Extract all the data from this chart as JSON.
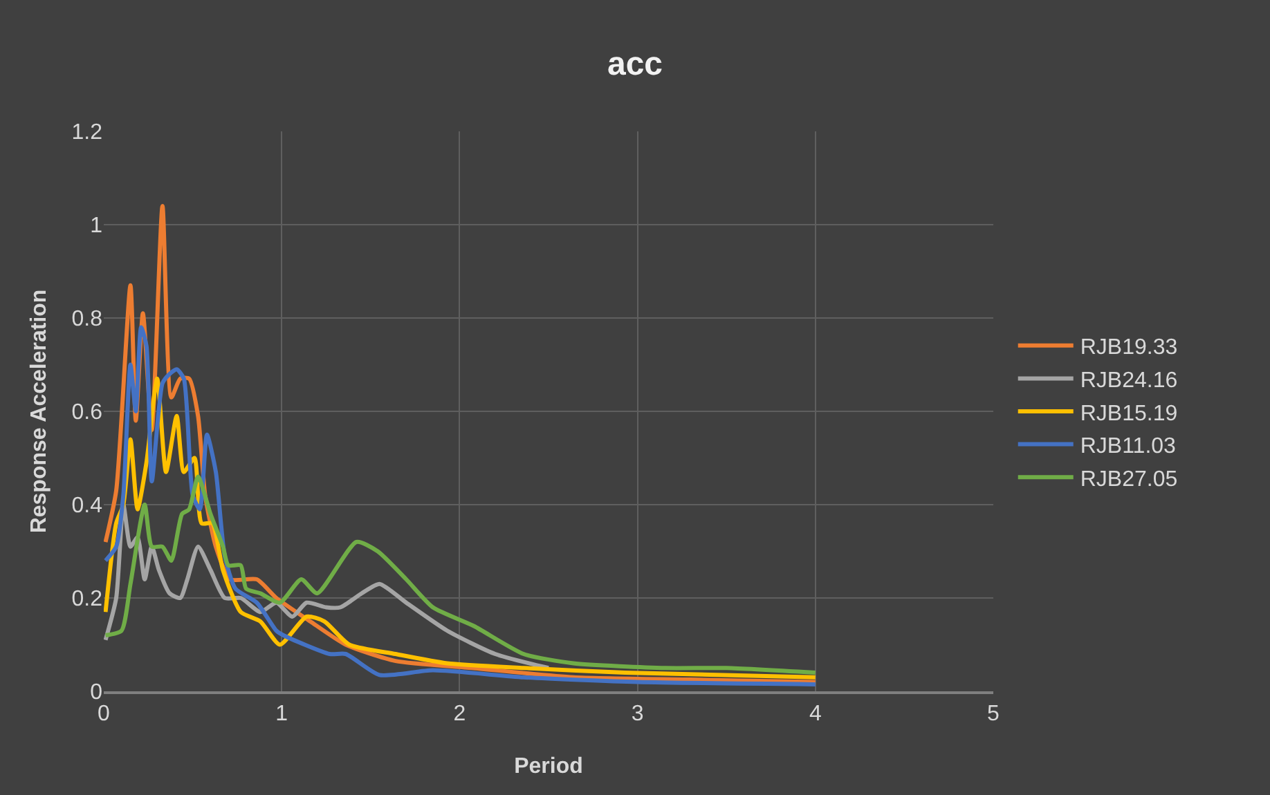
{
  "chart_data": {
    "type": "line",
    "title": "acc",
    "xlabel": "Period",
    "ylabel": "Response Acceleration",
    "xlim": [
      0,
      5
    ],
    "xticks": [
      0,
      1,
      2,
      3,
      4,
      5
    ],
    "ylim": [
      0,
      1.2
    ],
    "yticks": [
      0,
      0.2,
      0.4,
      0.6,
      0.8,
      1,
      1.2
    ],
    "grid": true,
    "legend": "right",
    "marker": "none",
    "line_style": "solid",
    "series": [
      {
        "name": "RJB19.33",
        "color": "#ed7d31",
        "x": [
          0.01,
          0.07,
          0.15,
          0.18,
          0.22,
          0.27,
          0.33,
          0.38,
          0.43,
          0.48,
          0.53,
          0.57,
          0.63,
          0.71,
          0.86,
          0.97,
          1.16,
          1.36,
          1.64,
          2.07,
          2.64,
          3.3,
          4
        ],
        "values": [
          0.32,
          0.43,
          0.87,
          0.58,
          0.81,
          0.56,
          1.04,
          0.63,
          0.67,
          0.67,
          0.59,
          0.42,
          0.31,
          0.24,
          0.24,
          0.2,
          0.15,
          0.1,
          0.065,
          0.05,
          0.03,
          0.025,
          0.02
        ]
      },
      {
        "name": "RJB24.16",
        "color": "#a5a5a5",
        "x": [
          0.01,
          0.07,
          0.11,
          0.15,
          0.19,
          0.23,
          0.27,
          0.31,
          0.37,
          0.43,
          0.47,
          0.53,
          0.6,
          0.68,
          0.77,
          0.88,
          0.97,
          1.06,
          1.14,
          1.25,
          1.33,
          1.45,
          1.55,
          1.7,
          1.93,
          2.2,
          2.5
        ],
        "values": [
          0.11,
          0.2,
          0.4,
          0.31,
          0.33,
          0.24,
          0.31,
          0.26,
          0.21,
          0.2,
          0.24,
          0.31,
          0.26,
          0.2,
          0.2,
          0.17,
          0.19,
          0.16,
          0.19,
          0.18,
          0.18,
          0.21,
          0.23,
          0.19,
          0.13,
          0.08,
          0.05
        ]
      },
      {
        "name": "RJB15.19",
        "color": "#ffc000",
        "x": [
          0.01,
          0.07,
          0.11,
          0.15,
          0.19,
          0.24,
          0.3,
          0.35,
          0.41,
          0.45,
          0.51,
          0.55,
          0.61,
          0.67,
          0.77,
          0.88,
          0.99,
          1.14,
          1.24,
          1.38,
          1.64,
          1.93,
          2.36,
          2.93,
          4
        ],
        "values": [
          0.17,
          0.36,
          0.4,
          0.54,
          0.39,
          0.49,
          0.67,
          0.47,
          0.59,
          0.47,
          0.5,
          0.36,
          0.36,
          0.26,
          0.17,
          0.15,
          0.1,
          0.16,
          0.15,
          0.1,
          0.08,
          0.06,
          0.05,
          0.04,
          0.03
        ]
      },
      {
        "name": "RJB11.03",
        "color": "#4472c4",
        "x": [
          0.01,
          0.07,
          0.11,
          0.15,
          0.18,
          0.21,
          0.24,
          0.27,
          0.33,
          0.37,
          0.41,
          0.45,
          0.5,
          0.54,
          0.58,
          0.63,
          0.68,
          0.74,
          0.86,
          0.97,
          1.01,
          1.27,
          1.36,
          1.55,
          1.85,
          2.36,
          3,
          4
        ],
        "values": [
          0.28,
          0.31,
          0.42,
          0.7,
          0.6,
          0.78,
          0.74,
          0.45,
          0.66,
          0.68,
          0.69,
          0.67,
          0.42,
          0.39,
          0.55,
          0.47,
          0.29,
          0.22,
          0.19,
          0.13,
          0.12,
          0.08,
          0.08,
          0.035,
          0.045,
          0.03,
          0.02,
          0.015
        ]
      },
      {
        "name": "RJB27.05",
        "color": "#70ad47",
        "x": [
          0.01,
          0.1,
          0.15,
          0.23,
          0.27,
          0.33,
          0.38,
          0.44,
          0.48,
          0.53,
          0.6,
          0.67,
          0.7,
          0.77,
          0.8,
          0.88,
          0.99,
          1.11,
          1.2,
          1.42,
          1.54,
          1.7,
          1.85,
          2.08,
          2.36,
          2.64,
          3.16,
          3.5,
          4
        ],
        "values": [
          0.12,
          0.13,
          0.23,
          0.4,
          0.31,
          0.31,
          0.28,
          0.38,
          0.39,
          0.46,
          0.38,
          0.31,
          0.27,
          0.27,
          0.22,
          0.21,
          0.19,
          0.24,
          0.21,
          0.32,
          0.3,
          0.24,
          0.18,
          0.14,
          0.08,
          0.06,
          0.05,
          0.05,
          0.04
        ]
      }
    ]
  }
}
